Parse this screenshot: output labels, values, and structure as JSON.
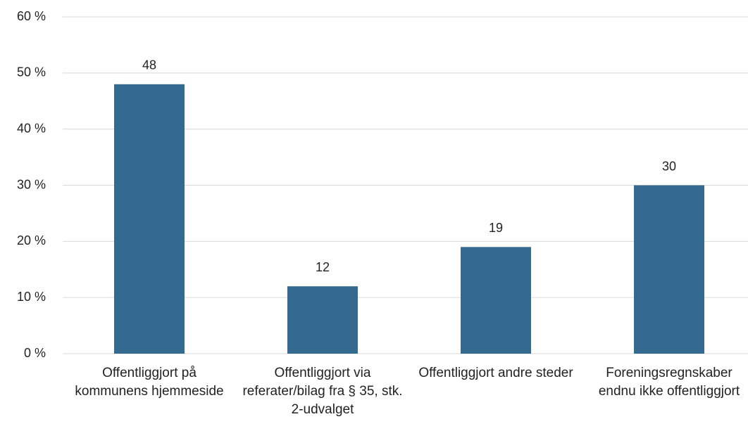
{
  "chart_data": {
    "type": "bar",
    "categories": [
      "Offentliggjort på kommunens hjemmeside",
      "Offentliggjort via referater/bilag fra § 35, stk. 2-udvalget",
      "Offentliggjort andre steder",
      "Foreningsregnskaber endnu ikke offentliggjort"
    ],
    "values": [
      48,
      12,
      19,
      30
    ],
    "color": "#356a90",
    "ylim": [
      0,
      60
    ],
    "yticks": [
      {
        "value": 0,
        "label": "0 %"
      },
      {
        "value": 10,
        "label": "10 %"
      },
      {
        "value": 20,
        "label": "20 %"
      },
      {
        "value": 30,
        "label": "30 %"
      },
      {
        "value": 40,
        "label": "40 %"
      },
      {
        "value": 50,
        "label": "50 %"
      },
      {
        "value": 60,
        "label": "60 %"
      }
    ],
    "grid": true
  }
}
